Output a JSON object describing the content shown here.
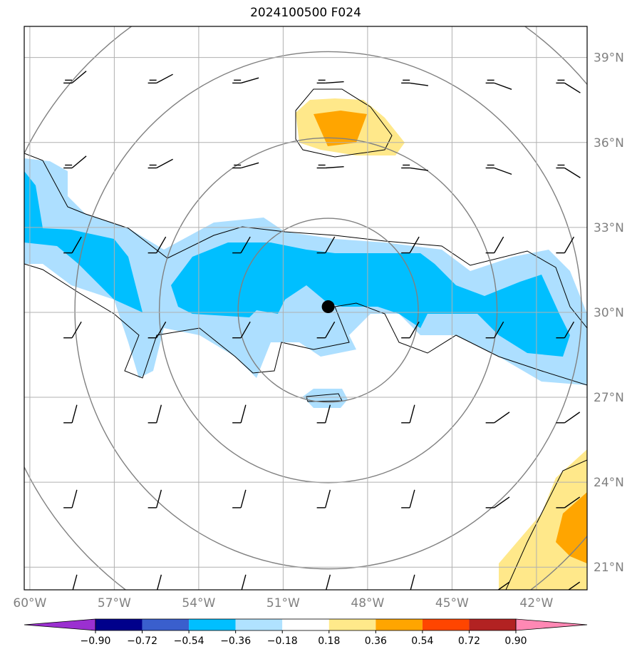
{
  "title": "2024100500 F024",
  "map": {
    "lon_range": [
      -60.2,
      -40.2
    ],
    "lat_range": [
      20.2,
      40.1
    ],
    "gridlines": true,
    "lon_labels": [
      "60°W",
      "57°W",
      "54°W",
      "51°W",
      "48°W",
      "45°W",
      "42°W"
    ],
    "lat_labels": [
      "39°N",
      "36°N",
      "33°N",
      "30°N",
      "27°N",
      "24°N",
      "21°N"
    ],
    "center_marker": {
      "lon": -49.4,
      "lat": 30.2
    },
    "range_rings_deg": [
      3.2,
      6.0,
      9.0,
      12.1
    ]
  },
  "colorbar": {
    "ticks": [
      "−0.90",
      "−0.72",
      "−0.54",
      "−0.36",
      "−0.18",
      "0.18",
      "0.36",
      "0.54",
      "0.72",
      "0.90"
    ],
    "colors": [
      "#9b30d0",
      "#00008b",
      "#3a5fcd",
      "#00bfff",
      "#b0e2ff",
      "#ffffff",
      "#ffe98a",
      "#ffa500",
      "#ff4500",
      "#b22222",
      "#ff88b4"
    ]
  },
  "fields": {
    "fill_light_blue": "#addfff",
    "fill_blue": "#00bfff",
    "fill_light_yellow": "#ffe88a",
    "fill_orange": "#ffa500",
    "contour_color": "#000000",
    "ring_color": "#808080"
  }
}
